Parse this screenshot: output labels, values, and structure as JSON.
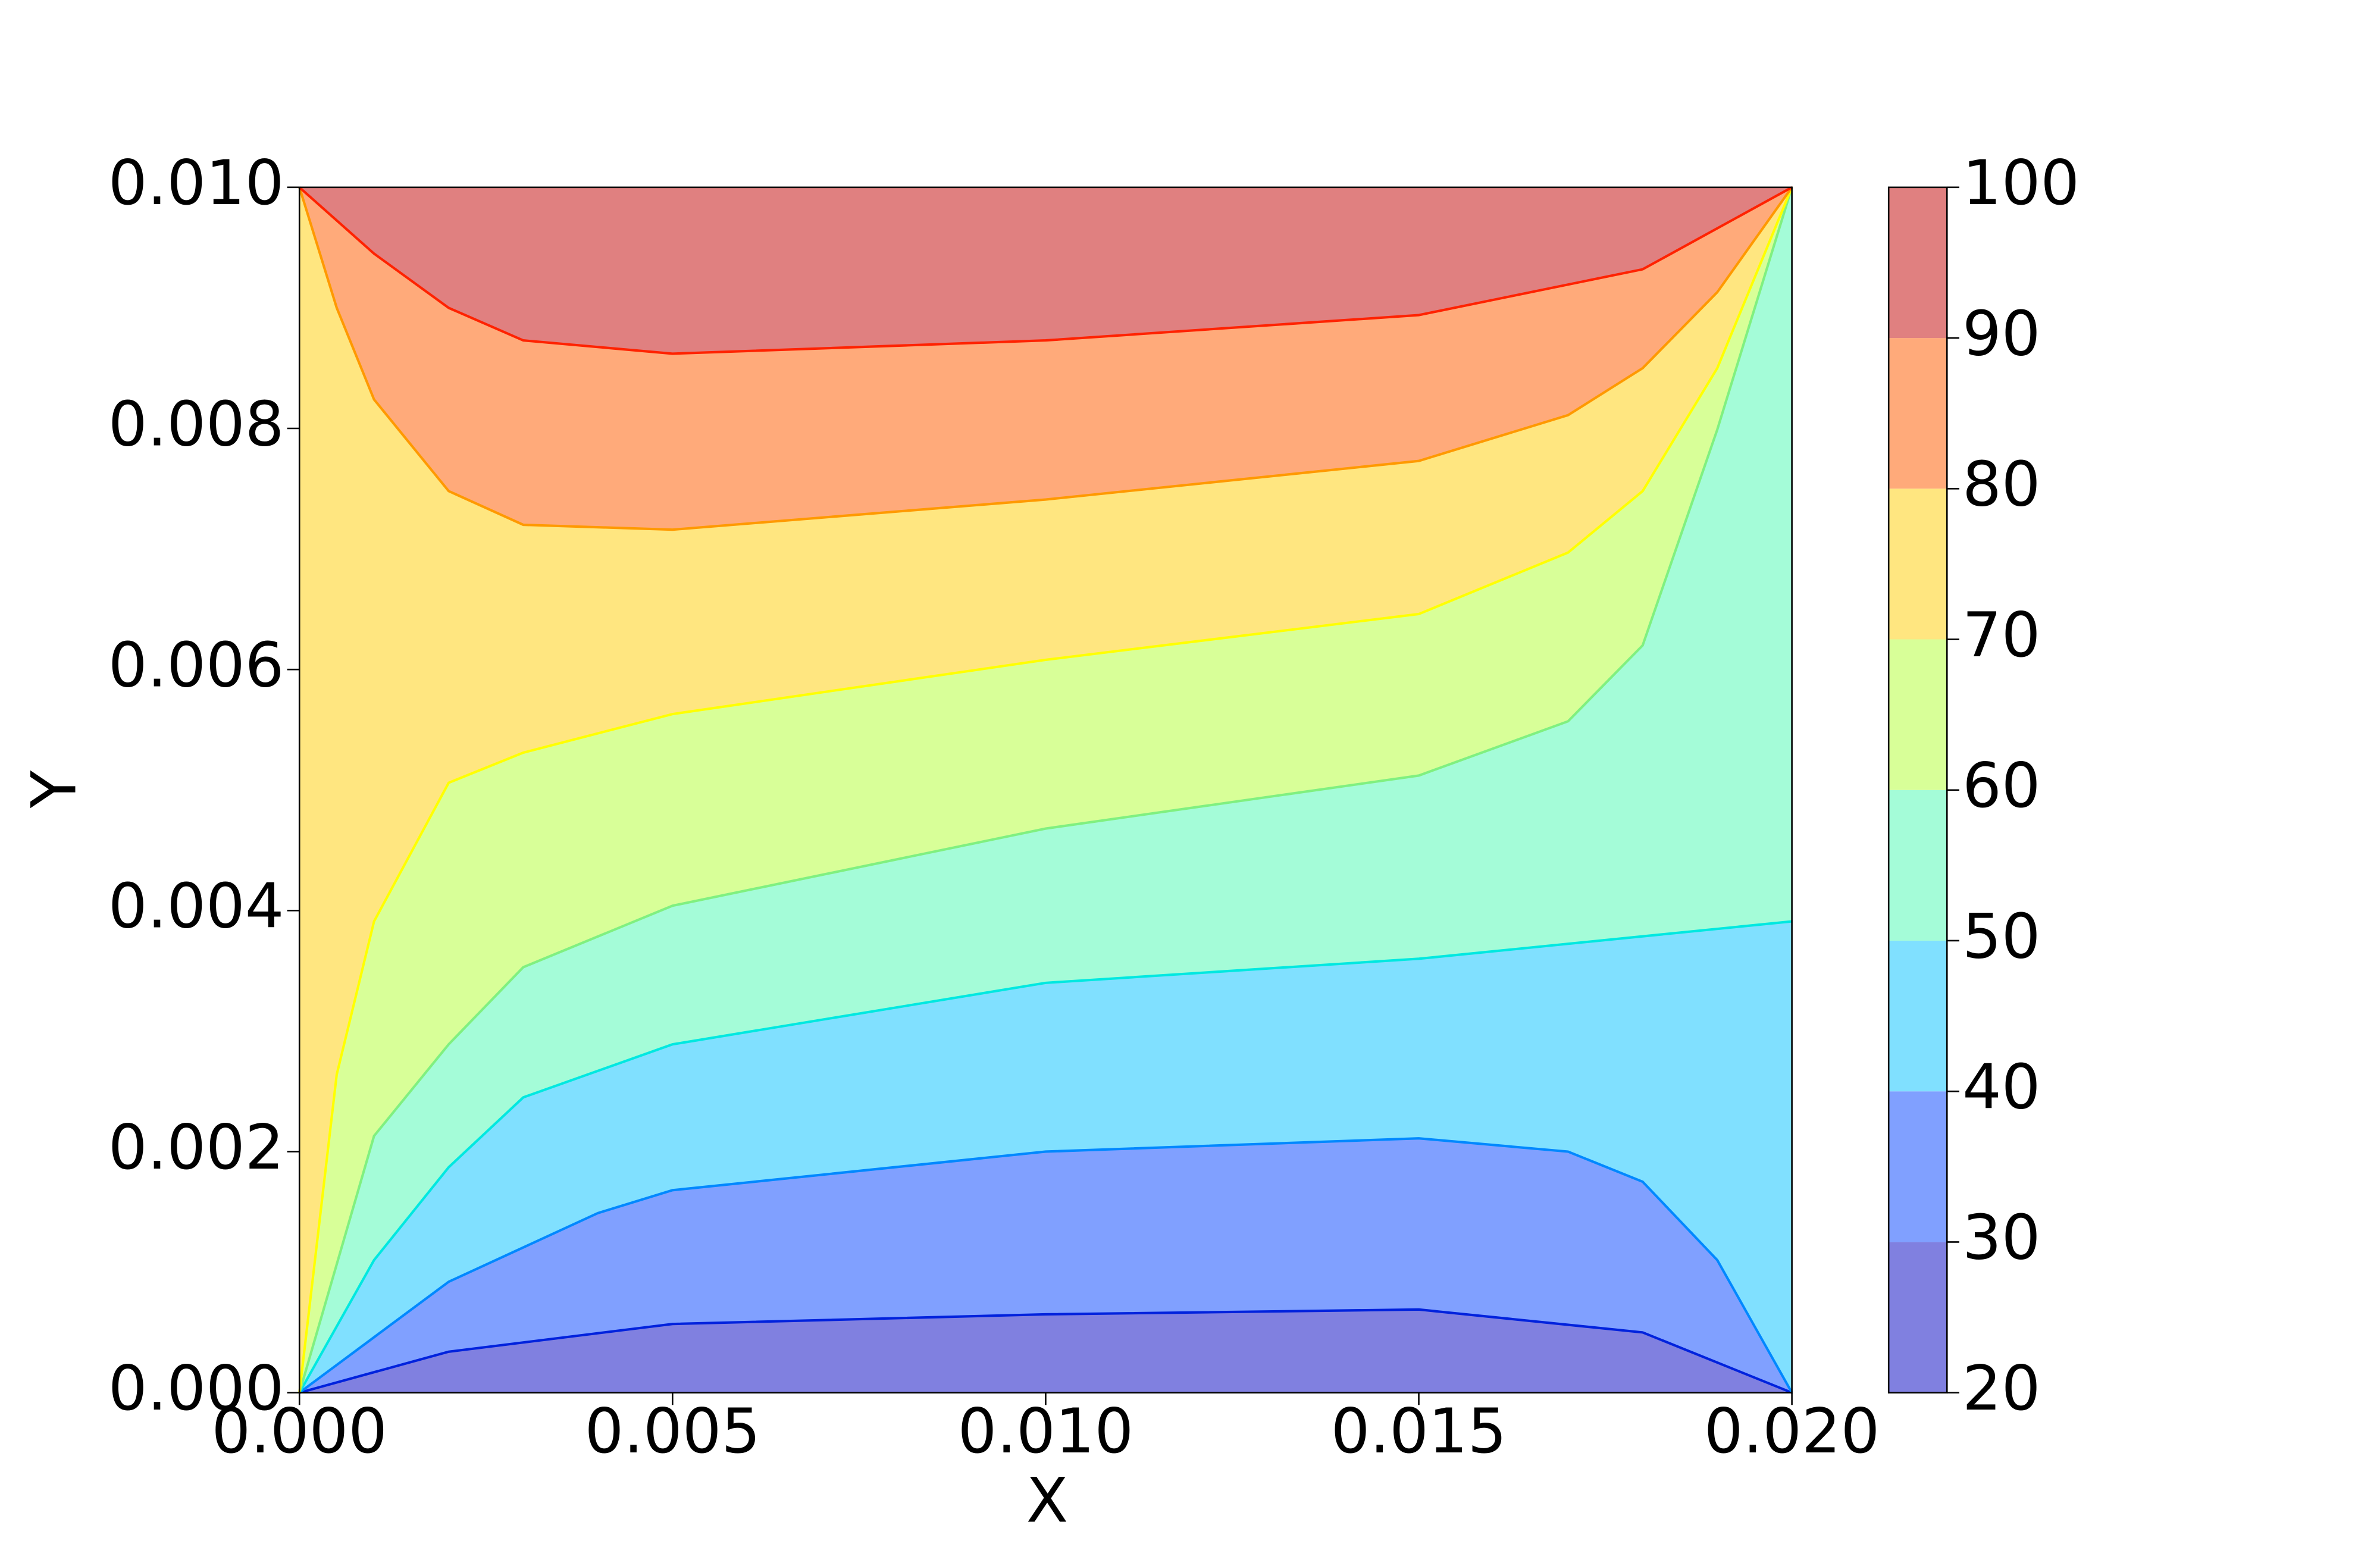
{
  "chart_data": {
    "type": "contour",
    "xlabel": "X",
    "ylabel": "Y",
    "xlim": [
      0,
      0.02
    ],
    "ylim": [
      0,
      0.01
    ],
    "xticks": [
      {
        "value": 0,
        "label": "0.000"
      },
      {
        "value": 0.005,
        "label": "0.005"
      },
      {
        "value": 0.01,
        "label": "0.010"
      },
      {
        "value": 0.015,
        "label": "0.015"
      },
      {
        "value": 0.02,
        "label": "0.020"
      }
    ],
    "yticks": [
      {
        "value": 0,
        "label": "0.000"
      },
      {
        "value": 0.002,
        "label": "0.002"
      },
      {
        "value": 0.004,
        "label": "0.004"
      },
      {
        "value": 0.006,
        "label": "0.006"
      },
      {
        "value": 0.008,
        "label": "0.008"
      },
      {
        "value": 0.01,
        "label": "0.010"
      }
    ],
    "levels": [
      20,
      30,
      40,
      50,
      60,
      70,
      80,
      90,
      100
    ],
    "band_colors": [
      "#8080e0",
      "#80a0ff",
      "#80e0ff",
      "#a4fcd8",
      "#d8ff98",
      "#ffe680",
      "#ffaa7a",
      "#e08080"
    ],
    "contours": [
      {
        "color": "#0022dd",
        "x": [
          0,
          0.002,
          0.005,
          0.01,
          0.015,
          0.018,
          0.02
        ],
        "y": [
          0,
          0.00034,
          0.00057,
          0.00065,
          0.00069,
          0.0005,
          0
        ]
      },
      {
        "color": "#0088ff",
        "x": [
          0,
          0.002,
          0.004,
          0.005,
          0.01,
          0.015,
          0.017,
          0.018,
          0.019,
          0.02
        ],
        "y": [
          0,
          0.00092,
          0.00149,
          0.00168,
          0.002,
          0.00211,
          0.002,
          0.00175,
          0.0011,
          0
        ]
      },
      {
        "color": "#00e8e0",
        "x": [
          0,
          0.001,
          0.002,
          0.003,
          0.005,
          0.01,
          0.015,
          0.02
        ],
        "y": [
          0,
          0.0011,
          0.00187,
          0.00245,
          0.00289,
          0.0034,
          0.0036,
          0.00391
        ]
      },
      {
        "color": "#80f080",
        "x": [
          0,
          0.001,
          0.002,
          0.003,
          0.005,
          0.01,
          0.015,
          0.017,
          0.018,
          0.019,
          0.02
        ],
        "y": [
          0,
          0.00213,
          0.00289,
          0.00353,
          0.00404,
          0.00468,
          0.00512,
          0.00557,
          0.0062,
          0.00799,
          0.01
        ]
      },
      {
        "color": "#ffff00",
        "x": [
          0,
          0.0005,
          0.001,
          0.002,
          0.003,
          0.005,
          0.01,
          0.015,
          0.017,
          0.018,
          0.019,
          0.02
        ],
        "y": [
          0,
          0.00264,
          0.00391,
          0.00506,
          0.00531,
          0.00563,
          0.00608,
          0.00646,
          0.00697,
          0.00748,
          0.0085,
          0.01
        ]
      },
      {
        "color": "#ff9900",
        "x": [
          0,
          0.0005,
          0.001,
          0.002,
          0.003,
          0.005,
          0.01,
          0.015,
          0.017,
          0.018,
          0.019,
          0.02
        ],
        "y": [
          0.01,
          0.009,
          0.00824,
          0.00748,
          0.0072,
          0.00716,
          0.00741,
          0.00773,
          0.00811,
          0.0085,
          0.00913,
          0.01
        ]
      },
      {
        "color": "#ff2200",
        "x": [
          0,
          0.001,
          0.002,
          0.003,
          0.005,
          0.01,
          0.015,
          0.018,
          0.02
        ],
        "y": [
          0.01,
          0.00945,
          0.009,
          0.00873,
          0.00862,
          0.00873,
          0.00894,
          0.00932,
          0.01
        ]
      }
    ]
  }
}
